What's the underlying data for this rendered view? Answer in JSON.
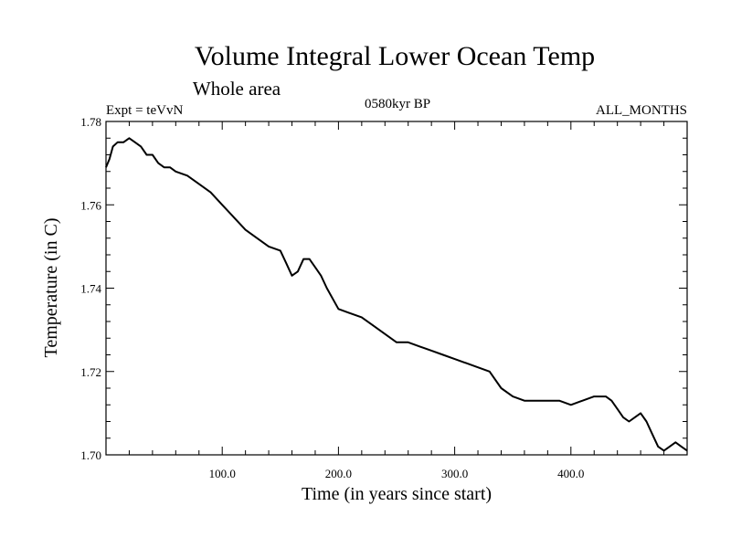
{
  "chart_data": {
    "type": "line",
    "title": "Volume Integral Lower Ocean Temp",
    "subtitle": "Whole area",
    "experiment_label": "Expt = teVvN",
    "period_label": "0580kyr BP",
    "months_label": "ALL_MONTHS",
    "xlabel": "Time (in years since start)",
    "ylabel": "Temperature (in C)",
    "xlim": [
      0,
      500
    ],
    "ylim": [
      1.7,
      1.78
    ],
    "x_ticks": [
      {
        "value": 100,
        "label": "100.0"
      },
      {
        "value": 200,
        "label": "200.0"
      },
      {
        "value": 300,
        "label": "300.0"
      },
      {
        "value": 400,
        "label": "400.0"
      }
    ],
    "y_ticks": [
      {
        "value": 1.7,
        "label": "1.70"
      },
      {
        "value": 1.72,
        "label": "1.72"
      },
      {
        "value": 1.74,
        "label": "1.74"
      },
      {
        "value": 1.76,
        "label": "1.76"
      },
      {
        "value": 1.78,
        "label": "1.78"
      }
    ],
    "grid": false,
    "series": [
      {
        "x": [
          0,
          3,
          6,
          10,
          15,
          20,
          25,
          30,
          35,
          40,
          45,
          50,
          55,
          60,
          70,
          80,
          90,
          100,
          110,
          120,
          130,
          140,
          150,
          155,
          160,
          165,
          170,
          175,
          180,
          185,
          190,
          200,
          210,
          220,
          230,
          240,
          250,
          260,
          270,
          280,
          290,
          300,
          310,
          320,
          330,
          340,
          350,
          360,
          370,
          380,
          390,
          400,
          410,
          420,
          430,
          435,
          440,
          445,
          450,
          455,
          460,
          465,
          470,
          475,
          480,
          485,
          490,
          495,
          500
        ],
        "y": [
          1.769,
          1.771,
          1.774,
          1.775,
          1.775,
          1.776,
          1.775,
          1.774,
          1.772,
          1.772,
          1.77,
          1.769,
          1.769,
          1.768,
          1.767,
          1.765,
          1.763,
          1.76,
          1.757,
          1.754,
          1.752,
          1.75,
          1.749,
          1.746,
          1.743,
          1.744,
          1.747,
          1.747,
          1.745,
          1.743,
          1.74,
          1.735,
          1.734,
          1.733,
          1.731,
          1.729,
          1.727,
          1.727,
          1.726,
          1.725,
          1.724,
          1.723,
          1.722,
          1.721,
          1.72,
          1.716,
          1.714,
          1.713,
          1.713,
          1.713,
          1.713,
          1.712,
          1.713,
          1.714,
          1.714,
          1.713,
          1.711,
          1.709,
          1.708,
          1.709,
          1.71,
          1.708,
          1.705,
          1.702,
          1.701,
          1.702,
          1.703,
          1.702,
          1.701
        ]
      }
    ]
  }
}
